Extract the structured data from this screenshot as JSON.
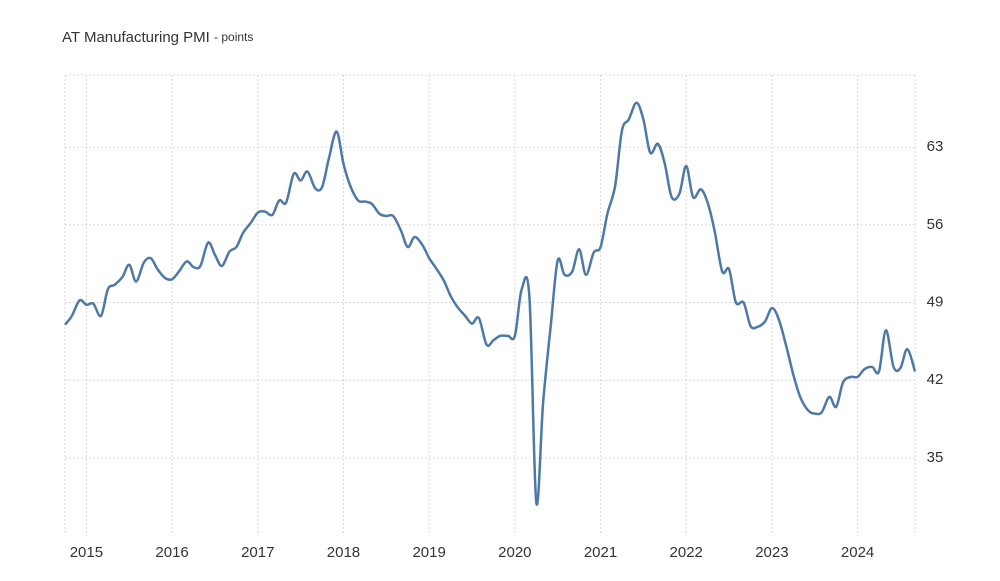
{
  "chart_data": {
    "type": "line",
    "title": "AT Manufacturing PMI",
    "subtitle": "- points",
    "x": [
      2014.75,
      2014.83,
      2014.92,
      2015,
      2015.08,
      2015.17,
      2015.25,
      2015.33,
      2015.42,
      2015.5,
      2015.58,
      2015.67,
      2015.75,
      2015.83,
      2015.92,
      2016,
      2016.08,
      2016.17,
      2016.25,
      2016.33,
      2016.42,
      2016.5,
      2016.58,
      2016.67,
      2016.75,
      2016.83,
      2016.92,
      2017,
      2017.08,
      2017.17,
      2017.25,
      2017.33,
      2017.42,
      2017.5,
      2017.58,
      2017.67,
      2017.75,
      2017.83,
      2017.92,
      2018,
      2018.08,
      2018.17,
      2018.25,
      2018.33,
      2018.42,
      2018.5,
      2018.58,
      2018.67,
      2018.75,
      2018.83,
      2018.92,
      2019,
      2019.08,
      2019.17,
      2019.25,
      2019.33,
      2019.42,
      2019.5,
      2019.58,
      2019.67,
      2019.75,
      2019.83,
      2019.92,
      2020,
      2020.08,
      2020.17,
      2020.25,
      2020.33,
      2020.42,
      2020.5,
      2020.58,
      2020.67,
      2020.75,
      2020.83,
      2020.92,
      2021,
      2021.08,
      2021.17,
      2021.25,
      2021.33,
      2021.42,
      2021.5,
      2021.58,
      2021.67,
      2021.75,
      2021.83,
      2021.92,
      2022,
      2022.08,
      2022.17,
      2022.25,
      2022.33,
      2022.42,
      2022.5,
      2022.58,
      2022.67,
      2022.75,
      2022.83,
      2022.92,
      2023,
      2023.08,
      2023.17,
      2023.25,
      2023.33,
      2023.42,
      2023.5,
      2023.58,
      2023.67,
      2023.75,
      2023.83,
      2023.92,
      2024,
      2024.08,
      2024.17,
      2024.25,
      2024.33,
      2024.42,
      2024.5,
      2024.58,
      2024.67
    ],
    "series": [
      {
        "name": "AT Manufacturing PMI",
        "color": "#4e79a7",
        "values": [
          47.0,
          47.8,
          49.2,
          48.8,
          48.9,
          47.8,
          50.2,
          50.6,
          51.3,
          52.4,
          50.9,
          52.6,
          53.0,
          52.0,
          51.2,
          51.1,
          51.8,
          52.7,
          52.2,
          52.3,
          54.4,
          53.3,
          52.3,
          53.6,
          54.0,
          55.3,
          56.2,
          57.1,
          57.2,
          56.9,
          58.2,
          58.0,
          60.6,
          60.0,
          60.8,
          59.3,
          59.4,
          62.0,
          64.4,
          61.5,
          59.5,
          58.2,
          58.1,
          57.9,
          57.0,
          56.8,
          56.8,
          55.5,
          54.0,
          54.9,
          54.2,
          53.0,
          52.1,
          51.0,
          49.6,
          48.6,
          47.8,
          47.1,
          47.6,
          45.2,
          45.6,
          46.0,
          46.0,
          46.0,
          50.2,
          49.5,
          31.0,
          40.0,
          47.0,
          52.8,
          51.5,
          51.8,
          53.8,
          51.5,
          53.5,
          54.0,
          57.0,
          59.5,
          64.5,
          65.5,
          67.0,
          65.5,
          62.5,
          63.3,
          61.5,
          58.5,
          58.8,
          61.3,
          58.5,
          59.2,
          58.0,
          55.5,
          51.8,
          52.0,
          49.0,
          49.0,
          46.9,
          46.8,
          47.3,
          48.5,
          47.5,
          45.0,
          42.5,
          40.5,
          39.3,
          39.0,
          39.1,
          40.5,
          39.6,
          41.8,
          42.3,
          42.3,
          43.0,
          43.2,
          42.8,
          46.5,
          43.2,
          43.1,
          44.8,
          42.8
        ]
      }
    ],
    "xlim": [
      2014.75,
      2024.67
    ],
    "xticks": [
      2015,
      2016,
      2017,
      2018,
      2019,
      2020,
      2021,
      2022,
      2023,
      2024
    ],
    "ylim": [
      28.06,
      69.5
    ],
    "yticks": [
      35,
      42,
      49,
      56,
      63
    ],
    "grid": true
  }
}
